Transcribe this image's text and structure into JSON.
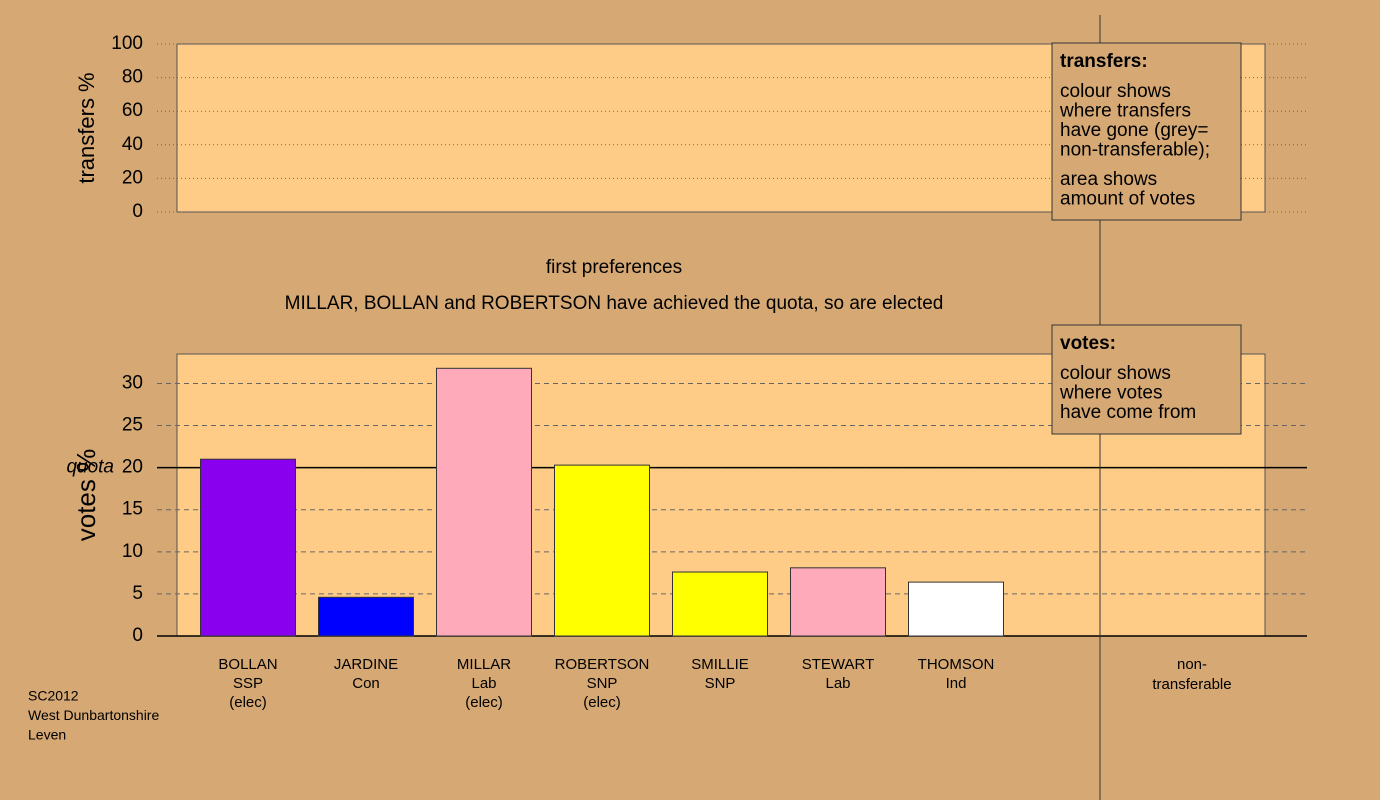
{
  "chart_data": [
    {
      "type": "bar",
      "y_label": "transfers %",
      "ylim": [
        0,
        100
      ],
      "yticks": [
        0,
        20,
        40,
        60,
        80,
        100
      ],
      "grid": true,
      "legend_title": "transfers:",
      "legend_text": [
        [
          "colour shows",
          "where transfers",
          "have gone (grey=",
          "non-transferable);"
        ],
        [
          "area shows",
          "amount of votes"
        ]
      ]
    },
    {
      "type": "bar",
      "title": "first preferences",
      "subtitle": "MILLAR, BOLLAN and ROBERTSON have achieved the quota, so are elected",
      "y_label": "votes %",
      "ylim": [
        0,
        33.5
      ],
      "yticks": [
        0,
        5,
        10,
        15,
        20,
        25,
        30
      ],
      "grid": true,
      "quota": {
        "value": 20,
        "label": "quota"
      },
      "categories": [
        [
          "BOLLAN",
          "SSP",
          "(elec)"
        ],
        [
          "JARDINE",
          "Con"
        ],
        [
          "MILLAR",
          "Lab",
          "(elec)"
        ],
        [
          "ROBERTSON",
          "SNP",
          "(elec)"
        ],
        [
          "SMILLIE",
          "SNP"
        ],
        [
          "STEWART",
          "Lab"
        ],
        [
          "THOMSON",
          "Ind"
        ]
      ],
      "values": [
        21.0,
        4.6,
        31.8,
        20.3,
        7.6,
        8.1,
        6.4
      ],
      "colors": [
        "#8800ee",
        "#0000ff",
        "#ffaabb",
        "#ffff00",
        "#ffff00",
        "#ffaabb",
        "#ffffff"
      ],
      "non_transferable_label": [
        "non-",
        "transferable"
      ],
      "legend_title": "votes:",
      "legend_text": [
        [
          "colour shows",
          "where votes",
          "have come from"
        ]
      ]
    }
  ],
  "footer": [
    "SC2012",
    "West Dunbartonshire",
    "Leven"
  ]
}
